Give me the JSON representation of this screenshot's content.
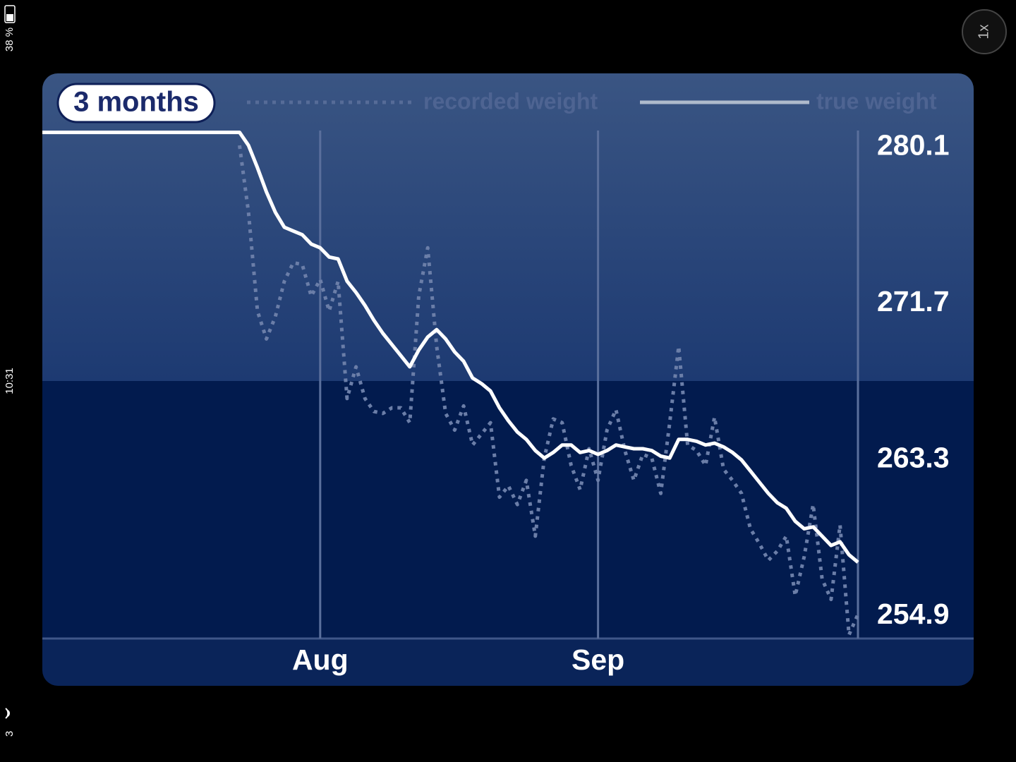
{
  "status_bar": {
    "battery": "38 %",
    "time": "10:31",
    "carrier": "3"
  },
  "zoom_button": "1x",
  "range_button": "3 months",
  "chart_data": {
    "type": "line",
    "categories": [
      null,
      null,
      null,
      null,
      null,
      null,
      null,
      null,
      null,
      null,
      null,
      null,
      null,
      null,
      null,
      null,
      null,
      null,
      null,
      null,
      null,
      null,
      null,
      null,
      null,
      null,
      null,
      null,
      null,
      null,
      null,
      "Aug",
      null,
      null,
      null,
      null,
      null,
      null,
      null,
      null,
      null,
      null,
      null,
      null,
      null,
      null,
      null,
      null,
      null,
      null,
      null,
      null,
      null,
      null,
      null,
      null,
      null,
      null,
      null,
      null,
      null,
      null,
      "Sep",
      null,
      null,
      null,
      null,
      null,
      null,
      null,
      null,
      null,
      null,
      null,
      null,
      null,
      null,
      null,
      null,
      null,
      null,
      null,
      null,
      null,
      null,
      null,
      null,
      null,
      null,
      null,
      null,
      null
    ],
    "series": [
      {
        "name": "recorded weight",
        "color": "#6b7ea8",
        "style": "dotted",
        "values": [
          null,
          null,
          null,
          null,
          null,
          null,
          null,
          null,
          null,
          null,
          null,
          null,
          null,
          null,
          null,
          null,
          null,
          null,
          null,
          null,
          null,
          null,
          280.2,
          276.6,
          271.3,
          269.8,
          271.0,
          272.9,
          273.9,
          273.8,
          272.1,
          273.0,
          271.3,
          272.9,
          266.6,
          268.3,
          266.6,
          265.9,
          265.8,
          266.1,
          266.1,
          265.3,
          272.1,
          274.7,
          269.4,
          265.8,
          264.9,
          266.2,
          264.1,
          264.7,
          265.3,
          261.3,
          261.9,
          260.9,
          262.2,
          259.2,
          263.4,
          265.5,
          265.3,
          263.0,
          261.7,
          263.9,
          262.2,
          264.9,
          266.0,
          263.8,
          262.2,
          263.6,
          263.4,
          261.5,
          265.3,
          269.4,
          264.1,
          263.8,
          263.0,
          265.6,
          262.8,
          262.2,
          261.5,
          259.6,
          258.8,
          257.9,
          258.4,
          259.2,
          256.0,
          258.1,
          260.9,
          256.9,
          255.8,
          259.8,
          253.9,
          255.0
        ]
      },
      {
        "name": "true weight",
        "color": "#ffffff",
        "style": "solid",
        "values": [
          280.9,
          280.9,
          280.9,
          280.9,
          280.9,
          280.9,
          280.9,
          280.9,
          280.9,
          280.9,
          280.9,
          280.9,
          280.9,
          280.9,
          280.9,
          280.9,
          280.9,
          280.9,
          280.9,
          280.9,
          280.9,
          280.9,
          280.9,
          280.2,
          279.0,
          277.7,
          276.6,
          275.8,
          275.6,
          275.4,
          274.9,
          274.7,
          274.2,
          274.1,
          272.9,
          272.3,
          271.6,
          270.8,
          270.1,
          269.5,
          268.9,
          268.3,
          269.2,
          269.9,
          270.3,
          269.8,
          269.1,
          268.6,
          267.7,
          267.4,
          267.0,
          266.1,
          265.4,
          264.8,
          264.4,
          263.8,
          263.4,
          263.7,
          264.1,
          264.1,
          263.7,
          263.8,
          263.6,
          263.8,
          264.1,
          264.0,
          263.9,
          263.9,
          263.8,
          263.5,
          263.4,
          264.4,
          264.4,
          264.3,
          264.1,
          264.2,
          264.0,
          263.7,
          263.3,
          262.7,
          262.1,
          261.5,
          261.0,
          260.7,
          260.0,
          259.6,
          259.7,
          259.2,
          258.7,
          258.9,
          258.2,
          257.8
        ]
      }
    ],
    "ylim": [
      253.7,
      281.0
    ],
    "yticks": [
      254.9,
      263.3,
      271.7,
      280.1
    ]
  }
}
